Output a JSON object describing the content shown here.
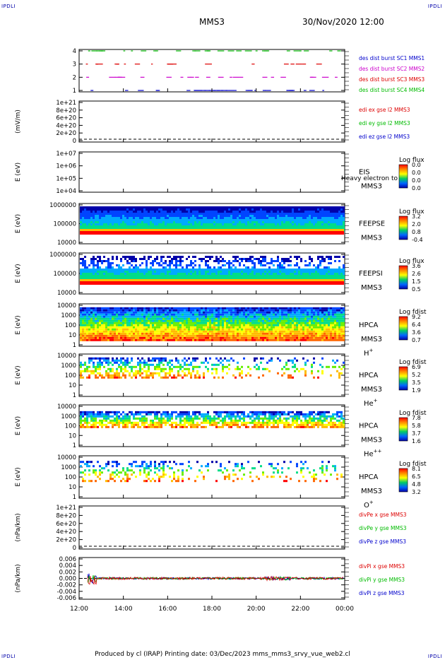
{
  "corners": {
    "tl": "IPDLI",
    "tr": "IPDLI",
    "bl": "IPDLI",
    "br": "IPDLI"
  },
  "header": {
    "spacecraft": "MMS3",
    "datetime": "30/Nov/2020 12:00"
  },
  "footer": {
    "text": "Produced by cl (IRAP)    Printing date: 03/Dec/2023    mms_mms3_srvy_vue_web2.cl"
  },
  "colors": {
    "blue": "#0000cc",
    "magenta": "#cc00cc",
    "red": "#dd0000",
    "green": "#00bb00"
  },
  "chart_data": [
    {
      "type": "scatter",
      "id": "burst",
      "yticks": [
        "1",
        "2",
        "3",
        "4"
      ],
      "legend": [
        {
          "label": "des dist burst SC1 MMS1",
          "color": "#0000cc"
        },
        {
          "label": "des dist burst SC2 MMS2",
          "color": "#cc00cc"
        },
        {
          "label": "des dist burst SC3 MMS3",
          "color": "#dd0000"
        },
        {
          "label": "des dist burst SC4 MMS4",
          "color": "#00bb00"
        }
      ]
    },
    {
      "type": "line",
      "id": "edi",
      "ylabel": "(mV/m)",
      "yticks": [
        "0",
        "2e+20",
        "4e+20",
        "6e+20",
        "8e+20",
        "1e+21"
      ],
      "legend": [
        {
          "label": "edi ex gse l2 MMS3",
          "color": "#dd0000"
        },
        {
          "label": "edi ey gse l2 MMS3",
          "color": "#00bb00"
        },
        {
          "label": "edi ez gse l2 MMS3",
          "color": "#0000cc"
        }
      ]
    },
    {
      "type": "heatmap",
      "id": "eis",
      "ylabel": "E (eV)",
      "yticks": [
        "1e+04",
        "1e+05",
        "1e+06",
        "1e+07"
      ],
      "side": [
        "EIS",
        "MMS3"
      ],
      "overlay": "Heavy electron to",
      "cbar_title": "Log flux",
      "cbar_ticks": [
        "0.0",
        "0.0",
        "0.0",
        "0.0"
      ]
    },
    {
      "type": "heatmap",
      "id": "feepse",
      "ylabel": "E (eV)",
      "yticks": [
        "10000",
        "100000",
        "1000000"
      ],
      "side": [
        "FEEPSE",
        "MMS3"
      ],
      "cbar_title": "Log flux",
      "cbar_ticks": [
        "3.2",
        "2.0",
        "0.8",
        "-0.4"
      ]
    },
    {
      "type": "heatmap",
      "id": "feepsi",
      "ylabel": "E (eV)",
      "yticks": [
        "10000",
        "100000",
        "1000000"
      ],
      "side": [
        "FEEPSI",
        "MMS3"
      ],
      "cbar_title": "Log flux",
      "cbar_ticks": [
        "3.6",
        "2.6",
        "1.5",
        "0.5"
      ]
    },
    {
      "type": "heatmap",
      "id": "hpca_h",
      "ylabel": "E (eV)",
      "yticks": [
        "1",
        "10",
        "100",
        "1000",
        "10000"
      ],
      "side": [
        "HPCA",
        "MMS3"
      ],
      "species": "H",
      "charge": "+",
      "cbar_title": "Log fdist",
      "cbar_ticks": [
        "9.2",
        "6.4",
        "3.6",
        "0.7"
      ]
    },
    {
      "type": "heatmap",
      "id": "hpca_he",
      "ylabel": "E (eV)",
      "yticks": [
        "1",
        "10",
        "100",
        "1000",
        "10000"
      ],
      "side": [
        "HPCA",
        "MMS3"
      ],
      "species": "He",
      "charge": "+",
      "cbar_title": "Log fdist",
      "cbar_ticks": [
        "6.9",
        "5.2",
        "3.5",
        "1.9"
      ]
    },
    {
      "type": "heatmap",
      "id": "hpca_hepp",
      "ylabel": "E (eV)",
      "yticks": [
        "1",
        "10",
        "100",
        "1000",
        "10000"
      ],
      "side": [
        "HPCA",
        "MMS3"
      ],
      "species": "He",
      "charge": "++",
      "cbar_title": "Log fdist",
      "cbar_ticks": [
        "7.8",
        "5.8",
        "3.7",
        "1.6"
      ]
    },
    {
      "type": "heatmap",
      "id": "hpca_o",
      "ylabel": "E (eV)",
      "yticks": [
        "1",
        "10",
        "100",
        "1000",
        "10000"
      ],
      "side": [
        "HPCA",
        "MMS3"
      ],
      "species": "O",
      "charge": "+",
      "cbar_title": "Log fdist",
      "cbar_ticks": [
        "8.1",
        "6.5",
        "4.8",
        "3.2"
      ]
    },
    {
      "type": "line",
      "id": "divpe",
      "ylabel": "(nPa/km)",
      "yticks": [
        "0",
        "2e+20",
        "4e+20",
        "6e+20",
        "8e+20",
        "1e+21"
      ],
      "legend": [
        {
          "label": "divPe x gse MMS3",
          "color": "#dd0000"
        },
        {
          "label": "divPe y gse MMS3",
          "color": "#00bb00"
        },
        {
          "label": "divPe z gse MMS3",
          "color": "#0000cc"
        }
      ]
    },
    {
      "type": "line",
      "id": "divpi",
      "ylabel": "(nPa/km)",
      "ylim": [
        -0.006,
        0.006
      ],
      "yticks": [
        "-0.006",
        "-0.004",
        "-0.002",
        "0.000",
        "0.002",
        "0.004",
        "0.006"
      ],
      "legend": [
        {
          "label": "divPi x gse MMS3",
          "color": "#dd0000"
        },
        {
          "label": "divPi y gse MMS3",
          "color": "#00bb00"
        },
        {
          "label": "divPi z gse MMS3",
          "color": "#0000cc"
        }
      ]
    }
  ],
  "xaxis": {
    "ticks": [
      "12:00",
      "14:00",
      "16:00",
      "18:00",
      "20:00",
      "22:00",
      "00:00"
    ]
  }
}
